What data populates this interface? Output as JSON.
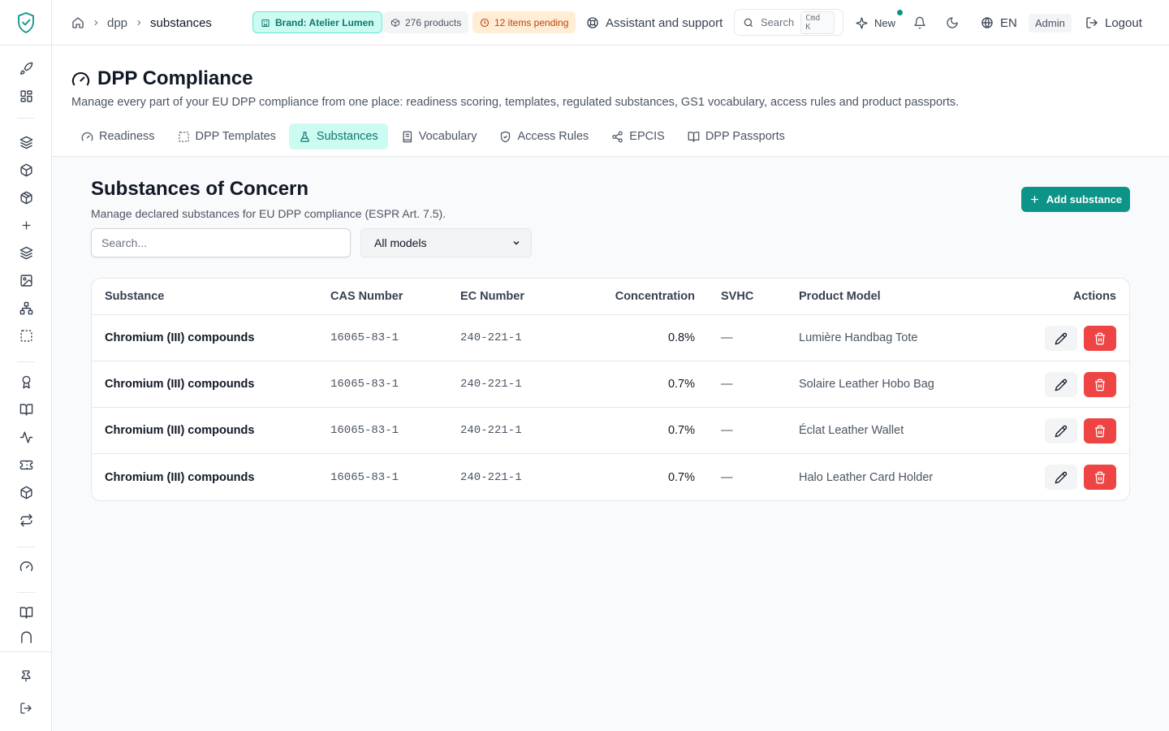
{
  "breadcrumb": {
    "section": "dpp",
    "current": "substances"
  },
  "header": {
    "brand_badge": "Brand: Atelier Lumen",
    "products_badge": "276 products",
    "pending_badge": "12 items pending",
    "support_label": "Assistant and support",
    "search_label": "Search",
    "search_shortcut": "Cmd K",
    "new_label": "New",
    "language": "EN",
    "role_badge": "Admin",
    "logout_label": "Logout"
  },
  "page": {
    "title": "DPP Compliance",
    "description": "Manage every part of your EU DPP compliance from one place: readiness scoring, templates, regulated substances, GS1 vocabulary, access rules and product passports."
  },
  "tabs": [
    {
      "label": "Readiness",
      "icon": "gauge-icon"
    },
    {
      "label": "DPP Templates",
      "icon": "dashed-square-icon"
    },
    {
      "label": "Substances",
      "icon": "flask-icon",
      "active": true
    },
    {
      "label": "Vocabulary",
      "icon": "book-icon"
    },
    {
      "label": "Access Rules",
      "icon": "shield-icon"
    },
    {
      "label": "EPCIS",
      "icon": "share-icon"
    },
    {
      "label": "DPP Passports",
      "icon": "open-book-icon"
    }
  ],
  "content": {
    "title": "Substances of Concern",
    "subtitle": "Manage declared substances for EU DPP compliance (ESPR Art. 7.5).",
    "add_button": "Add substance",
    "search_placeholder": "Search...",
    "model_filter": "All models"
  },
  "table": {
    "columns": [
      "Substance",
      "CAS Number",
      "EC Number",
      "Concentration",
      "SVHC",
      "Product Model",
      "Actions"
    ],
    "rows": [
      {
        "substance": "Chromium (III) compounds",
        "cas": "16065-83-1",
        "ec": "240-221-1",
        "concentration": "0.8%",
        "svhc": "—",
        "model": "Lumière Handbag Tote"
      },
      {
        "substance": "Chromium (III) compounds",
        "cas": "16065-83-1",
        "ec": "240-221-1",
        "concentration": "0.7%",
        "svhc": "—",
        "model": "Solaire Leather Hobo Bag"
      },
      {
        "substance": "Chromium (III) compounds",
        "cas": "16065-83-1",
        "ec": "240-221-1",
        "concentration": "0.7%",
        "svhc": "—",
        "model": "Éclat Leather Wallet"
      },
      {
        "substance": "Chromium (III) compounds",
        "cas": "16065-83-1",
        "ec": "240-221-1",
        "concentration": "0.7%",
        "svhc": "—",
        "model": "Halo Leather Card Holder"
      }
    ]
  },
  "colors": {
    "accent": "#0d9488",
    "accent_light": "#ccfbf1",
    "danger": "#ef4444",
    "warning": "#c2410c"
  }
}
